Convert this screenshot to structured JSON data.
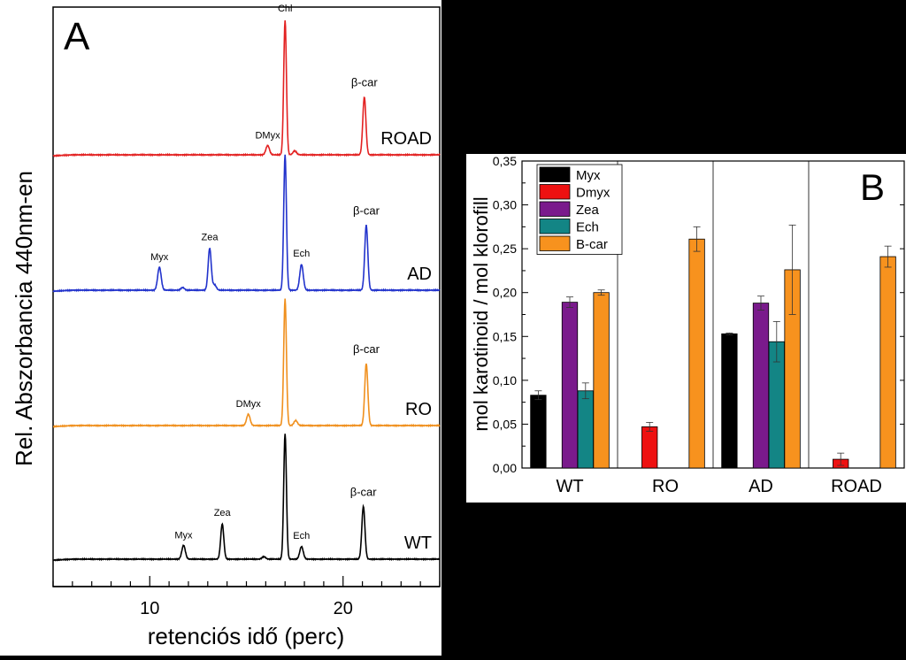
{
  "chart_data": [
    {
      "panel": "A",
      "type": "line",
      "panel_label": "A",
      "xlabel": "retenciós idő (perc)",
      "ylabel": "Rel. Abszorbancia 440nm-en",
      "xlim": [
        5,
        25
      ],
      "xticks": [
        10,
        20
      ],
      "xtick_labels": [
        "10",
        "20"
      ],
      "baseline_color": "#000000",
      "series": [
        {
          "name": "ROAD",
          "color": "#e32222",
          "peaks": [
            {
              "x": 16.1,
              "h": 0.07,
              "label": "DMyx"
            },
            {
              "x": 17.0,
              "h": 1.0,
              "label": "Chl"
            },
            {
              "x": 17.5,
              "h": 0.03,
              "label": ""
            },
            {
              "x": 21.1,
              "h": 0.43,
              "label": "β-car"
            }
          ]
        },
        {
          "name": "AD",
          "color": "#2233cc",
          "peaks": [
            {
              "x": 10.5,
              "h": 0.17,
              "label": "Myx"
            },
            {
              "x": 11.7,
              "h": 0.02,
              "label": ""
            },
            {
              "x": 13.1,
              "h": 0.31,
              "label": "Zea"
            },
            {
              "x": 13.35,
              "h": 0.04,
              "label": ""
            },
            {
              "x": 17.0,
              "h": 1.0,
              "label": "Chl"
            },
            {
              "x": 17.85,
              "h": 0.19,
              "label": "Ech"
            },
            {
              "x": 21.2,
              "h": 0.48,
              "label": "β-car"
            }
          ]
        },
        {
          "name": "RO",
          "color": "#f0901e",
          "peaks": [
            {
              "x": 15.1,
              "h": 0.09,
              "label": "DMyx"
            },
            {
              "x": 17.0,
              "h": 1.0,
              "label": "Chl"
            },
            {
              "x": 17.55,
              "h": 0.04,
              "label": ""
            },
            {
              "x": 21.2,
              "h": 0.49,
              "label": "β-car"
            }
          ]
        },
        {
          "name": "WT",
          "color": "#000000",
          "peaks": [
            {
              "x": 11.75,
              "h": 0.11,
              "label": "Myx"
            },
            {
              "x": 13.75,
              "h": 0.28,
              "label": "Zea"
            },
            {
              "x": 15.9,
              "h": 0.02,
              "label": ""
            },
            {
              "x": 17.0,
              "h": 1.0,
              "label": "Chl"
            },
            {
              "x": 17.85,
              "h": 0.1,
              "label": "Ech"
            },
            {
              "x": 21.05,
              "h": 0.42,
              "label": "β-car"
            }
          ]
        }
      ]
    },
    {
      "panel": "B",
      "type": "bar",
      "panel_label": "B",
      "ylabel": "mol karotinoid / mol klorofill",
      "ylim": [
        0,
        0.35
      ],
      "yticks": [
        "0,00",
        "0,05",
        "0,10",
        "0,15",
        "0,20",
        "0,25",
        "0,30",
        "0,35"
      ],
      "categories": [
        "WT",
        "RO",
        "AD",
        "ROAD"
      ],
      "legend_position": "top-left",
      "series": [
        {
          "name": "Myx",
          "color": "#000000",
          "values": [
            0.083,
            null,
            0.153,
            null
          ],
          "errors": [
            0.005,
            null,
            0.001,
            null
          ]
        },
        {
          "name": "Dmyx",
          "color": "#ee1111",
          "values": [
            null,
            0.047,
            null,
            0.01
          ],
          "errors": [
            null,
            0.005,
            null,
            0.007
          ]
        },
        {
          "name": "Zea",
          "color": "#7a1a8c",
          "values": [
            0.189,
            null,
            0.188,
            null
          ],
          "errors": [
            0.006,
            null,
            0.008,
            null
          ]
        },
        {
          "name": "Ech",
          "color": "#138585",
          "values": [
            0.088,
            null,
            0.144,
            null
          ],
          "errors": [
            0.009,
            null,
            0.023,
            null
          ]
        },
        {
          "name": "B-car",
          "color": "#f7921e",
          "values": [
            0.2,
            0.261,
            0.226,
            0.241
          ],
          "errors": [
            0.003,
            0.014,
            0.051,
            0.012
          ]
        }
      ]
    }
  ]
}
